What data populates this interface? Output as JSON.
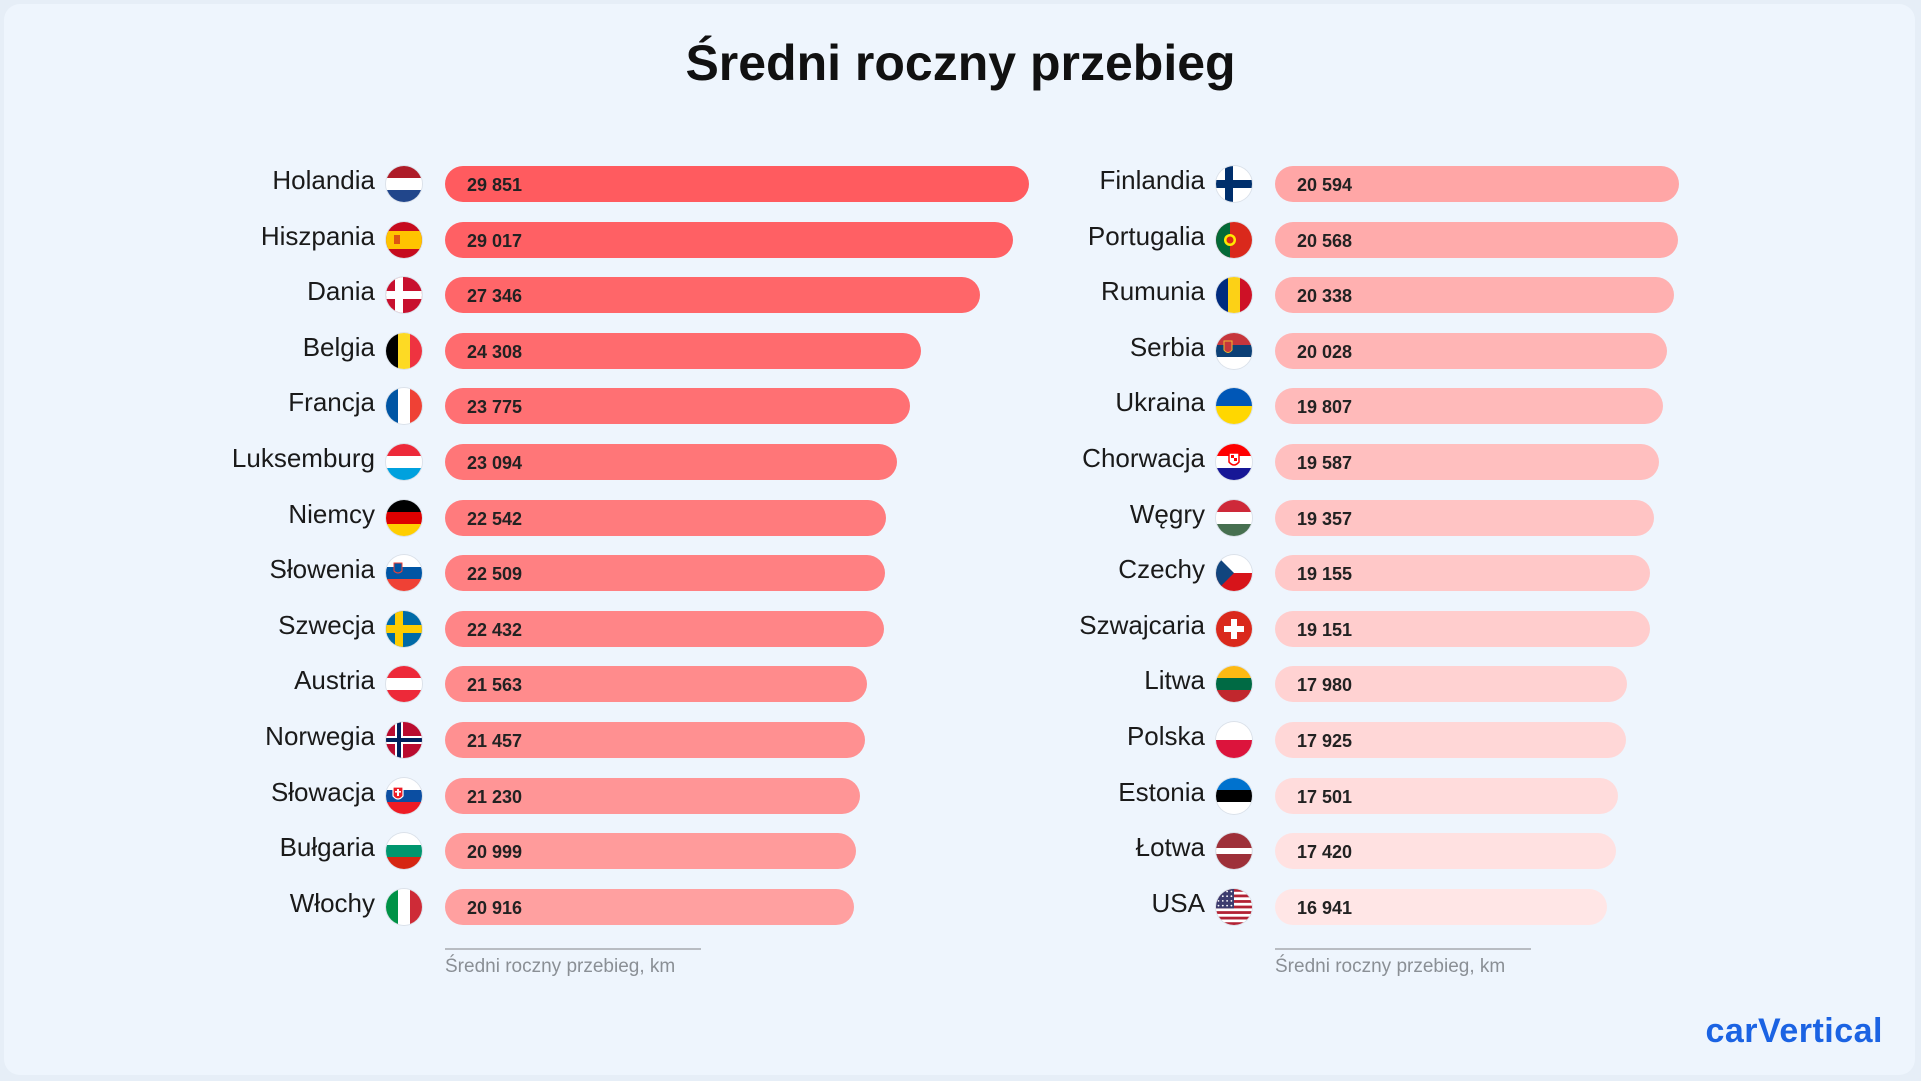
{
  "title": "Średni roczny przebieg",
  "brand": "carVertical",
  "chart_data": [
    {
      "type": "bar",
      "orientation": "horizontal",
      "xlabel": "Średni roczny przebieg, km",
      "categories": [
        "Holandia",
        "Hiszpania",
        "Dania",
        "Belgia",
        "Francja",
        "Luksemburg",
        "Niemcy",
        "Słowenia",
        "Szwecja",
        "Austria",
        "Norwegia",
        "Słowacja",
        "Bułgaria",
        "Włochy"
      ],
      "values": [
        29851,
        29017,
        27346,
        24308,
        23775,
        23094,
        22542,
        22509,
        22432,
        21563,
        21457,
        21230,
        20999,
        20916
      ],
      "value_labels": [
        "29 851",
        "29 017",
        "27 346",
        "24 308",
        "23 775",
        "23 094",
        "22 542",
        "22 509",
        "22 432",
        "21 563",
        "21 457",
        "21 230",
        "20 999",
        "20 916"
      ],
      "color": "#ff5b5f"
    },
    {
      "type": "bar",
      "orientation": "horizontal",
      "xlabel": "Średni roczny przebieg, km",
      "categories": [
        "Finlandia",
        "Portugalia",
        "Rumunia",
        "Serbia",
        "Ukraina",
        "Chorwacja",
        "Węgry",
        "Czechy",
        "Szwajcaria",
        "Litwa",
        "Polska",
        "Estonia",
        "Łotwa",
        "USA"
      ],
      "values": [
        20594,
        20568,
        20338,
        20028,
        19807,
        19587,
        19357,
        19155,
        19151,
        17980,
        17925,
        17501,
        17420,
        16941
      ],
      "value_labels": [
        "20 594",
        "20 568",
        "20 338",
        "20 028",
        "19 807",
        "19 587",
        "19 357",
        "19 155",
        "19 151",
        "17 980",
        "17 925",
        "17 501",
        "17 420",
        "16 941"
      ],
      "color": "#ffa9a9"
    }
  ],
  "flags": [
    [
      "netherlands-flag-icon",
      "spain-flag-icon",
      "denmark-flag-icon",
      "belgium-flag-icon",
      "france-flag-icon",
      "luxembourg-flag-icon",
      "germany-flag-icon",
      "slovenia-flag-icon",
      "sweden-flag-icon",
      "austria-flag-icon",
      "norway-flag-icon",
      "slovakia-flag-icon",
      "bulgaria-flag-icon",
      "italy-flag-icon"
    ],
    [
      "finland-flag-icon",
      "portugal-flag-icon",
      "romania-flag-icon",
      "serbia-flag-icon",
      "ukraine-flag-icon",
      "croatia-flag-icon",
      "hungary-flag-icon",
      "czechia-flag-icon",
      "switzerland-flag-icon",
      "lithuania-flag-icon",
      "poland-flag-icon",
      "estonia-flag-icon",
      "latvia-flag-icon",
      "usa-flag-icon"
    ]
  ]
}
